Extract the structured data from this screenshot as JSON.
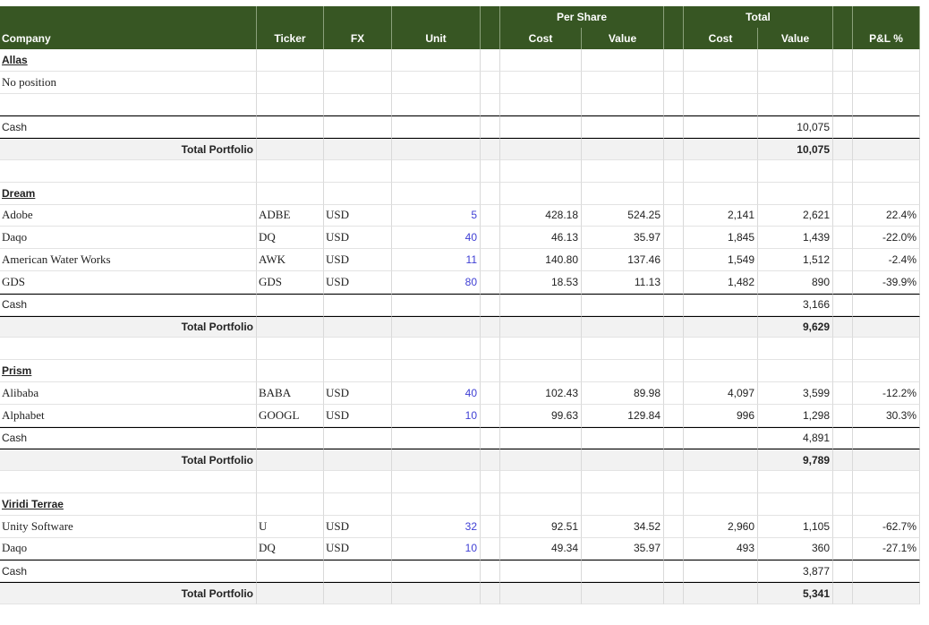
{
  "headers": {
    "group_per_share": "Per Share",
    "group_total": "Total",
    "company": "Company",
    "ticker": "Ticker",
    "fx": "FX",
    "unit": "Unit",
    "ps_cost": "Cost",
    "ps_value": "Value",
    "t_cost": "Cost",
    "t_value": "Value",
    "pnl": "P&L %"
  },
  "rows": [
    {
      "type": "section",
      "company": "Allas"
    },
    {
      "type": "note",
      "company": "No position"
    },
    {
      "type": "blank"
    },
    {
      "type": "cash",
      "company": "Cash",
      "t_value": "10,075"
    },
    {
      "type": "total",
      "label": "Total Portfolio",
      "t_value": "10,075"
    },
    {
      "type": "blank"
    },
    {
      "type": "section",
      "company": "Dream"
    },
    {
      "type": "position",
      "company": "Adobe",
      "ticker": "ADBE",
      "fx": "USD",
      "unit": "5",
      "ps_cost": "428.18",
      "ps_value": "524.25",
      "t_cost": "2,141",
      "t_value": "2,621",
      "pnl": "22.4%"
    },
    {
      "type": "position",
      "company": "Daqo",
      "ticker": "DQ",
      "fx": "USD",
      "unit": "40",
      "ps_cost": "46.13",
      "ps_value": "35.97",
      "t_cost": "1,845",
      "t_value": "1,439",
      "pnl": "-22.0%"
    },
    {
      "type": "position",
      "company": "American Water Works",
      "ticker": "AWK",
      "fx": "USD",
      "unit": "11",
      "ps_cost": "140.80",
      "ps_value": "137.46",
      "t_cost": "1,549",
      "t_value": "1,512",
      "pnl": "-2.4%"
    },
    {
      "type": "position",
      "company": "GDS",
      "ticker": "GDS",
      "fx": "USD",
      "unit": "80",
      "ps_cost": "18.53",
      "ps_value": "11.13",
      "t_cost": "1,482",
      "t_value": "890",
      "pnl": "-39.9%"
    },
    {
      "type": "cash",
      "company": "Cash",
      "t_value": "3,166"
    },
    {
      "type": "total",
      "label": "Total Portfolio",
      "t_value": "9,629"
    },
    {
      "type": "blank"
    },
    {
      "type": "section",
      "company": "Prism"
    },
    {
      "type": "position",
      "company": "Alibaba",
      "ticker": "BABA",
      "fx": "USD",
      "unit": "40",
      "ps_cost": "102.43",
      "ps_value": "89.98",
      "t_cost": "4,097",
      "t_value": "3,599",
      "pnl": "-12.2%"
    },
    {
      "type": "position",
      "company": "Alphabet",
      "ticker": "GOOGL",
      "fx": "USD",
      "unit": "10",
      "ps_cost": "99.63",
      "ps_value": "129.84",
      "t_cost": "996",
      "t_value": "1,298",
      "pnl": "30.3%"
    },
    {
      "type": "cash",
      "company": "Cash",
      "t_value": "4,891"
    },
    {
      "type": "total",
      "label": "Total Portfolio",
      "t_value": "9,789"
    },
    {
      "type": "blank"
    },
    {
      "type": "section",
      "company": "Viridi Terrae"
    },
    {
      "type": "position",
      "company": "Unity Software",
      "ticker": "U",
      "fx": "USD",
      "unit": "32",
      "ps_cost": "92.51",
      "ps_value": "34.52",
      "t_cost": "2,960",
      "t_value": "1,105",
      "pnl": "-62.7%"
    },
    {
      "type": "position",
      "company": "Daqo",
      "ticker": "DQ",
      "fx": "USD",
      "unit": "10",
      "ps_cost": "49.34",
      "ps_value": "35.97",
      "t_cost": "493",
      "t_value": "360",
      "pnl": "-27.1%"
    },
    {
      "type": "cash",
      "company": "Cash",
      "t_value": "3,877"
    },
    {
      "type": "total",
      "label": "Total Portfolio",
      "t_value": "5,341"
    }
  ]
}
